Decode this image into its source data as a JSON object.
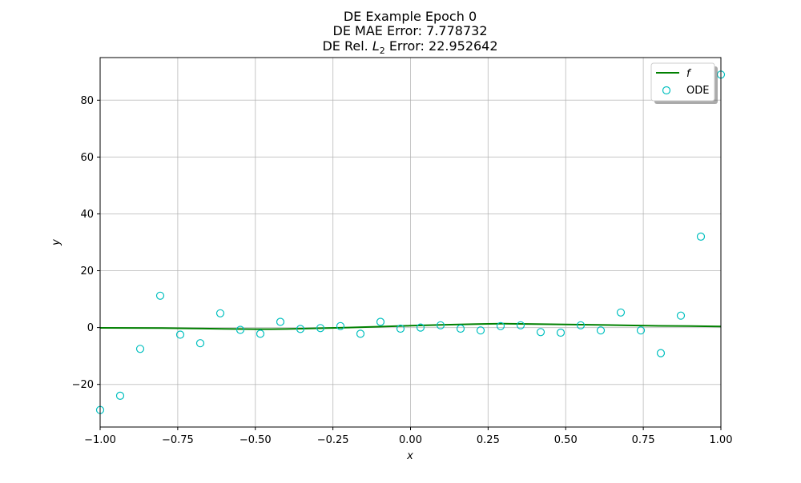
{
  "chart_data": {
    "type": "line",
    "title_lines": [
      "DE Example Epoch 0",
      "DE MAE Error: 7.778732"
    ],
    "title_l2": {
      "prefix": "DE Rel. ",
      "symbol": "L",
      "subscript": "2",
      "suffix": " Error: 22.952642"
    },
    "xlabel": "x",
    "ylabel": "y",
    "xlim": [
      -1.0,
      1.0
    ],
    "ylim": [
      -35,
      95
    ],
    "xticks": [
      -1.0,
      -0.75,
      -0.5,
      -0.25,
      0.0,
      0.25,
      0.5,
      0.75,
      1.0
    ],
    "xtick_labels": [
      "−1.00",
      "−0.75",
      "−0.50",
      "−0.25",
      "0.00",
      "0.25",
      "0.50",
      "0.75",
      "1.00"
    ],
    "yticks": [
      -20,
      0,
      20,
      40,
      60,
      80
    ],
    "ytick_labels": [
      "−20",
      "0",
      "20",
      "40",
      "60",
      "80"
    ],
    "grid": true,
    "legend_position": "top-right",
    "colors": {
      "line": "#008000",
      "scatter": "#00bfbf",
      "grid": "#b0b0b0"
    },
    "series": [
      {
        "name": "f",
        "kind": "line",
        "x": [
          -1.0,
          -0.9,
          -0.8,
          -0.7,
          -0.6,
          -0.5,
          -0.45,
          -0.4,
          -0.3,
          -0.2,
          -0.1,
          0.0,
          0.1,
          0.2,
          0.25,
          0.3,
          0.35,
          0.4,
          0.5,
          0.6,
          0.7,
          0.8,
          0.9,
          1.0
        ],
        "y": [
          -0.1,
          -0.15,
          -0.2,
          -0.3,
          -0.45,
          -0.55,
          -0.55,
          -0.5,
          -0.25,
          0.0,
          0.3,
          0.65,
          0.95,
          1.2,
          1.3,
          1.35,
          1.3,
          1.25,
          1.1,
          0.95,
          0.75,
          0.6,
          0.5,
          0.4
        ]
      },
      {
        "name": "ODE",
        "kind": "scatter",
        "x": [
          -1.0,
          -0.9355,
          -0.871,
          -0.8065,
          -0.7419,
          -0.6774,
          -0.6129,
          -0.5484,
          -0.4839,
          -0.4194,
          -0.3548,
          -0.2903,
          -0.2258,
          -0.1613,
          -0.0968,
          -0.0323,
          0.0323,
          0.0968,
          0.1613,
          0.2258,
          0.2903,
          0.3548,
          0.4194,
          0.4839,
          0.5484,
          0.6129,
          0.6774,
          0.7419,
          0.8065,
          0.871,
          0.9355,
          1.0
        ],
        "y": [
          -29.0,
          -24.0,
          -7.5,
          11.2,
          -2.5,
          -5.5,
          5.0,
          -0.8,
          -2.2,
          2.0,
          -0.5,
          -0.2,
          0.5,
          -2.2,
          2.0,
          -0.4,
          0.0,
          0.8,
          -0.4,
          -1.0,
          0.5,
          0.8,
          -1.6,
          -1.8,
          0.8,
          -1.0,
          5.3,
          -1.0,
          -9.0,
          4.2,
          32.0,
          89.0
        ]
      }
    ]
  }
}
